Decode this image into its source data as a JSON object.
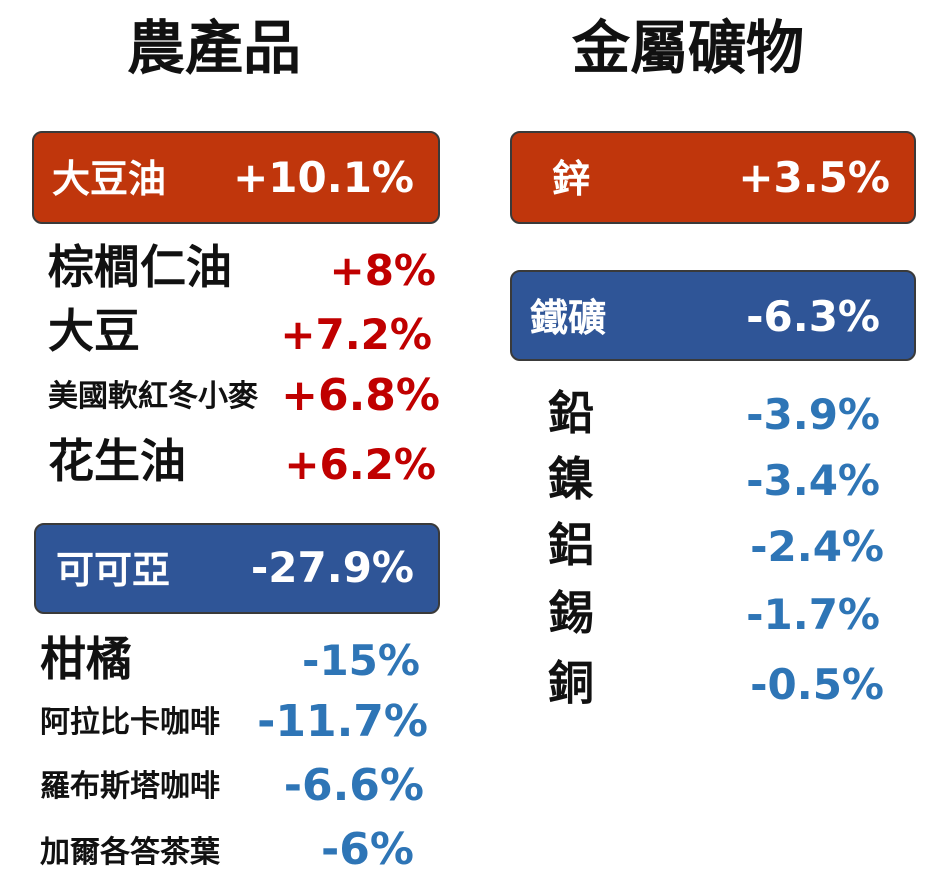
{
  "colors": {
    "up_box": "#c0360c",
    "down_box": "#2f5597",
    "up_text": "#c00000",
    "down_text": "#2e75b6"
  },
  "agriculture": {
    "title": "農產品",
    "top_gainer": {
      "name": "大豆油",
      "change": "+10.1%"
    },
    "gainers": [
      {
        "name": "棕櫚仁油",
        "change": "+8%"
      },
      {
        "name": "大豆",
        "change": "+7.2%"
      },
      {
        "name": "美國軟紅冬小麥",
        "change": "+6.8%"
      },
      {
        "name": "花生油",
        "change": "+6.2%"
      }
    ],
    "top_loser": {
      "name": "可可亞",
      "change": "-27.9%"
    },
    "losers": [
      {
        "name": "柑橘",
        "change": "-15%"
      },
      {
        "name": "阿拉比卡咖啡",
        "change": "-11.7%"
      },
      {
        "name": "羅布斯塔咖啡",
        "change": "-6.6%"
      },
      {
        "name": "加爾各答茶葉",
        "change": "-6%"
      }
    ]
  },
  "metals": {
    "title": "金屬礦物",
    "top_gainer": {
      "name": "鋅",
      "change": "+3.5%"
    },
    "top_loser": {
      "name": "鐵礦",
      "change": "-6.3%"
    },
    "losers": [
      {
        "name": "鉛",
        "change": "-3.9%"
      },
      {
        "name": "鎳",
        "change": "-3.4%"
      },
      {
        "name": "鋁",
        "change": "-2.4%"
      },
      {
        "name": "錫",
        "change": "-1.7%"
      },
      {
        "name": "銅",
        "change": "-0.5%"
      }
    ]
  }
}
